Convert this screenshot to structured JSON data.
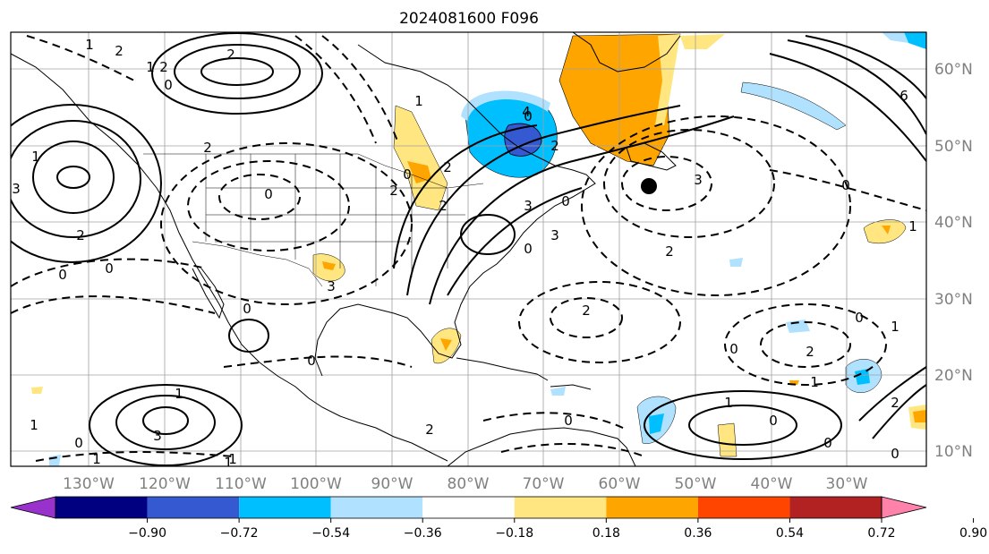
{
  "title": "2024081600 F096",
  "lon_labels": [
    "130°W",
    "120°W",
    "110°W",
    "100°W",
    "90°W",
    "80°W",
    "70°W",
    "60°W",
    "50°W",
    "40°W",
    "30°W"
  ],
  "lat_labels": [
    "60°N",
    "50°N",
    "40°N",
    "30°N",
    "20°N",
    "10°N"
  ],
  "colorbar": {
    "colors": [
      "#9932CC",
      "#000080",
      "#3559D0",
      "#00BFFF",
      "#B0E2FF",
      "#FFFFFF",
      "#FFE680",
      "#FFA500",
      "#FF4500",
      "#B22222",
      "#FF82AB"
    ],
    "tick_labels": [
      "−0.90",
      "−0.72",
      "−0.54",
      "−0.36",
      "−0.18",
      "0.18",
      "0.36",
      "0.54",
      "0.72",
      "0.90"
    ]
  },
  "contour_labels": [
    "2",
    "2",
    "1",
    "3",
    "0",
    "0",
    "0",
    "1",
    "2",
    "2",
    "0",
    "0",
    "0",
    "1",
    "3",
    "0",
    "0",
    "1",
    "2",
    "2",
    "2",
    "3",
    "2",
    "4",
    "3",
    "0",
    "0",
    "0",
    "2",
    "3",
    "6",
    "0",
    "2",
    "2",
    "0",
    "1",
    "1",
    "0",
    "0",
    "1",
    "1",
    "2",
    "1",
    "3",
    "0",
    "1",
    "1",
    "0",
    "2",
    "1",
    "2",
    "1",
    "0"
  ],
  "storm_marker": "filled-circle"
}
